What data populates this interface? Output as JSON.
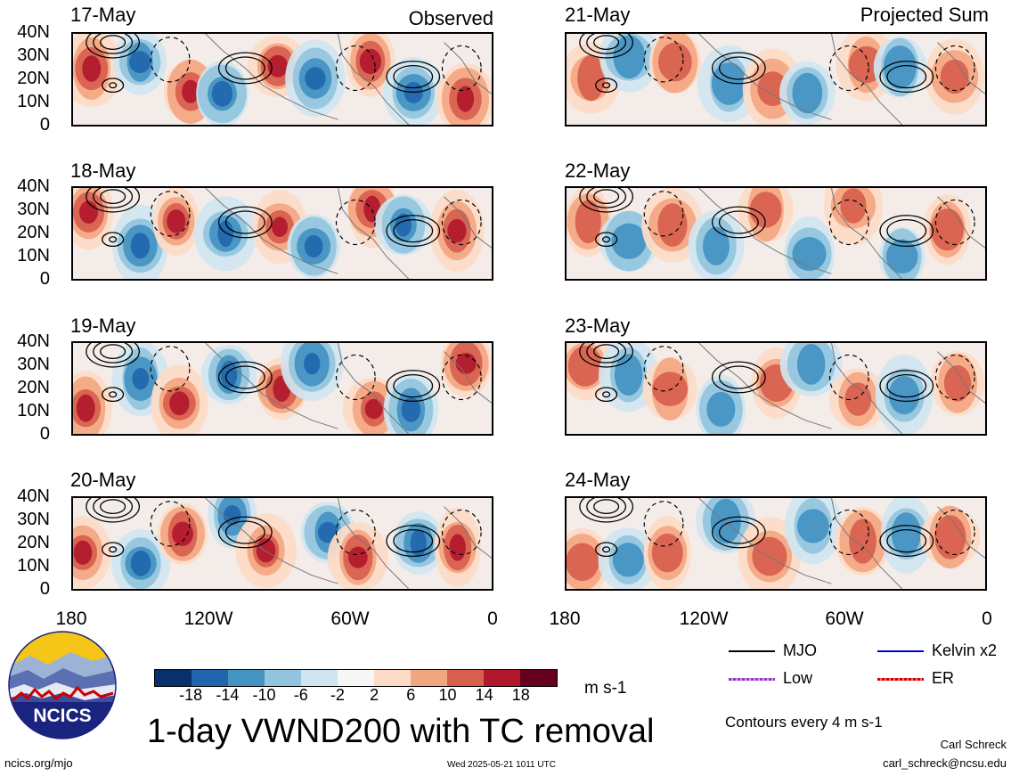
{
  "panels_left": {
    "tag": "Observed",
    "dates": [
      "17-May",
      "18-May",
      "19-May",
      "20-May"
    ]
  },
  "panels_right": {
    "tag": "Projected Sum",
    "dates": [
      "21-May",
      "22-May",
      "23-May",
      "24-May"
    ]
  },
  "y_ticks": [
    "40N",
    "30N",
    "20N",
    "10N",
    "0"
  ],
  "x_ticks": [
    "180",
    "120W",
    "60W",
    "0"
  ],
  "colorbar": {
    "labels": [
      "-18",
      "-14",
      "-10",
      "-6",
      "-2",
      "2",
      "6",
      "10",
      "14",
      "18"
    ],
    "colors": [
      "#08306b",
      "#2166ac",
      "#4393c3",
      "#92c5de",
      "#d1e5f0",
      "#f7f7f7",
      "#fddbc7",
      "#f4a582",
      "#d6604d",
      "#b2182b",
      "#67001f"
    ],
    "units": "m s-1"
  },
  "title": "1-day VWND200 with TC removal",
  "legend": {
    "mjo": "MJO",
    "kelvin": "Kelvin x2",
    "low": "Low",
    "er": "ER",
    "mjo_color": "#000000",
    "kelvin_color": "#0000cc",
    "low_color": "#9933cc",
    "er_color": "#cc0000"
  },
  "contour_note": "Contours every 4 m s-1",
  "logo_text": "NCICS",
  "footer": {
    "url": "ncics.org/mjo",
    "timestamp": "Wed 2025-05-21 1011 UTC",
    "author": "Carl Schreck",
    "email": "carl_schreck@ncsu.edu"
  }
}
